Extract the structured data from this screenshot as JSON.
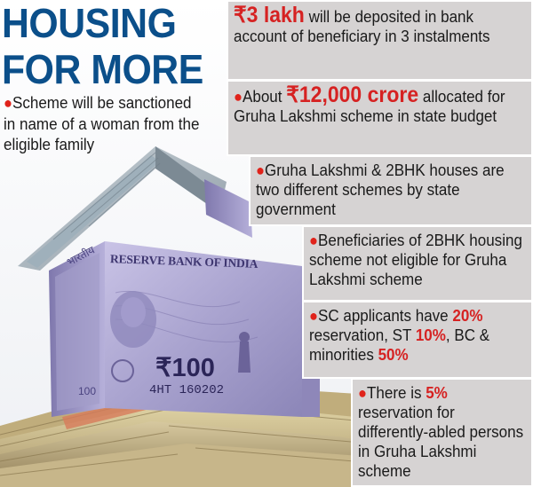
{
  "headline": {
    "line1": "HOUSING",
    "line2": "FOR MORE"
  },
  "left_note": "Scheme will be sanctioned in name of a woman from the eligible family",
  "banknote": {
    "bank_name": "RESERVE BANK OF INDIA",
    "denomination": "₹100",
    "serial": "4HT 160202"
  },
  "points": [
    {
      "highlight": "₹3 lakh",
      "text": " will be deposited in bank account of beneficiary in 3 instalments"
    },
    {
      "pre": "About ",
      "highlight": "₹12,000 crore",
      "text": " allocated for Gruha Lakshmi scheme in state budget"
    },
    {
      "text": "Gruha Lakshmi & 2BHK houses are two different schemes by state government"
    },
    {
      "text": "Beneficiaries of 2BHK housing scheme not eligible for Gruha Lakshmi scheme"
    },
    {
      "p1": "SC applicants have ",
      "v1": "20%",
      "p2": " reservation, ST ",
      "v2": "10%",
      "p3": ", BC & minorities ",
      "v3": "50%"
    },
    {
      "pre": "There is ",
      "highlight": "5%",
      "text": " reservation for differently-abled persons in Gruha Lakshmi scheme"
    }
  ],
  "colors": {
    "headline": "#0b4f8a",
    "box_bg": "#d6d3d3",
    "accent_red": "#d62222",
    "note_purple": "#a9a3c9"
  },
  "icons": [
    "bullet-dot-icon",
    "ashoka-emblem-icon",
    "gandhi-portrait-icon",
    "rbi-seal-icon"
  ]
}
